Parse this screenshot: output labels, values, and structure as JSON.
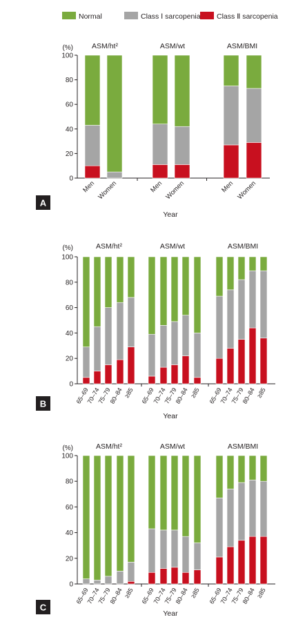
{
  "legend": {
    "items": [
      {
        "label": "Normal",
        "color": "#7aab3e"
      },
      {
        "label": "Class Ⅰ sarcopenia",
        "color": "#a5a5a5"
      },
      {
        "label": "Class Ⅱ sarcopenia",
        "color": "#c8101f"
      }
    ]
  },
  "colors": {
    "normal": "#7aab3e",
    "class1": "#a5a5a5",
    "class2": "#c8101f",
    "axis": "#231f20"
  },
  "chart_data": [
    {
      "type": "bar",
      "stacked": true,
      "panel_label": "A",
      "ylabel": "(%)",
      "xlabel": "Year",
      "ylim": [
        0,
        100
      ],
      "yticks": [
        0,
        20,
        40,
        60,
        80,
        100
      ],
      "groups": [
        {
          "title": "ASM/ht²",
          "categories": [
            "Men",
            "Women"
          ],
          "series": [
            {
              "name": "Class Ⅱ sarcopenia",
              "values": [
                10,
                0
              ]
            },
            {
              "name": "Class Ⅰ sarcopenia",
              "values": [
                33,
                5
              ]
            },
            {
              "name": "Normal",
              "values": [
                57,
                95
              ]
            }
          ]
        },
        {
          "title": "ASM/wt",
          "categories": [
            "Men",
            "Women"
          ],
          "series": [
            {
              "name": "Class Ⅱ sarcopenia",
              "values": [
                11,
                11
              ]
            },
            {
              "name": "Class Ⅰ sarcopenia",
              "values": [
                33,
                31
              ]
            },
            {
              "name": "Normal",
              "values": [
                56,
                58
              ]
            }
          ]
        },
        {
          "title": "ASM/BMI",
          "categories": [
            "Men",
            "Women"
          ],
          "series": [
            {
              "name": "Class Ⅱ sarcopenia",
              "values": [
                27,
                29
              ]
            },
            {
              "name": "Class Ⅰ sarcopenia",
              "values": [
                48,
                44
              ]
            },
            {
              "name": "Normal",
              "values": [
                25,
                27
              ]
            }
          ]
        }
      ]
    },
    {
      "type": "bar",
      "stacked": true,
      "panel_label": "B",
      "ylabel": "(%)",
      "xlabel": "Year",
      "ylim": [
        0,
        100
      ],
      "yticks": [
        0,
        20,
        40,
        60,
        80,
        100
      ],
      "groups": [
        {
          "title": "ASM/ht²",
          "categories": [
            "65–69",
            "70–74",
            "75–79",
            "80–84",
            "≥85"
          ],
          "series": [
            {
              "name": "Class Ⅱ sarcopenia",
              "values": [
                5,
                10,
                15,
                19,
                29
              ]
            },
            {
              "name": "Class Ⅰ sarcopenia",
              "values": [
                24,
                35,
                45,
                45,
                39
              ]
            },
            {
              "name": "Normal",
              "values": [
                71,
                55,
                40,
                36,
                32
              ]
            }
          ]
        },
        {
          "title": "ASM/wt",
          "categories": [
            "65–69",
            "70–74",
            "75–79",
            "80–84",
            "≥85"
          ],
          "series": [
            {
              "name": "Class Ⅱ sarcopenia",
              "values": [
                6,
                13,
                15,
                22,
                5
              ]
            },
            {
              "name": "Class Ⅰ sarcopenia",
              "values": [
                33,
                33,
                34,
                32,
                35
              ]
            },
            {
              "name": "Normal",
              "values": [
                61,
                54,
                51,
                46,
                60
              ]
            }
          ]
        },
        {
          "title": "ASM/BMI",
          "categories": [
            "65–69",
            "70–74",
            "75–79",
            "80–84",
            "≥85"
          ],
          "series": [
            {
              "name": "Class Ⅱ sarcopenia",
              "values": [
                20,
                28,
                35,
                44,
                36
              ]
            },
            {
              "name": "Class Ⅰ sarcopenia",
              "values": [
                49,
                46,
                47,
                45,
                53
              ]
            },
            {
              "name": "Normal",
              "values": [
                31,
                26,
                18,
                11,
                11
              ]
            }
          ]
        }
      ]
    },
    {
      "type": "bar",
      "stacked": true,
      "panel_label": "C",
      "ylabel": "(%)",
      "xlabel": "Year",
      "ylim": [
        0,
        100
      ],
      "yticks": [
        0,
        20,
        40,
        60,
        80,
        100
      ],
      "groups": [
        {
          "title": "ASM/ht²",
          "categories": [
            "65–69",
            "70–74",
            "75–79",
            "80–84",
            "≥85"
          ],
          "series": [
            {
              "name": "Class Ⅱ sarcopenia",
              "values": [
                0,
                0,
                0,
                0,
                2
              ]
            },
            {
              "name": "Class Ⅰ sarcopenia",
              "values": [
                4,
                3,
                6,
                10,
                15
              ]
            },
            {
              "name": "Normal",
              "values": [
                96,
                97,
                94,
                90,
                83
              ]
            }
          ]
        },
        {
          "title": "ASM/wt",
          "categories": [
            "65–69",
            "70–74",
            "75–79",
            "80–84",
            "≥85"
          ],
          "series": [
            {
              "name": "Class Ⅱ sarcopenia",
              "values": [
                9,
                12,
                13,
                9,
                11
              ]
            },
            {
              "name": "Class Ⅰ sarcopenia",
              "values": [
                34,
                30,
                29,
                28,
                21
              ]
            },
            {
              "name": "Normal",
              "values": [
                57,
                58,
                58,
                63,
                68
              ]
            }
          ]
        },
        {
          "title": "ASM/BMI",
          "categories": [
            "65–69",
            "70–74",
            "75–79",
            "80–84",
            "≥85"
          ],
          "series": [
            {
              "name": "Class Ⅱ sarcopenia",
              "values": [
                21,
                29,
                34,
                37,
                37
              ]
            },
            {
              "name": "Class Ⅰ sarcopenia",
              "values": [
                46,
                45,
                45,
                44,
                43
              ]
            },
            {
              "name": "Normal",
              "values": [
                33,
                26,
                21,
                19,
                20
              ]
            }
          ]
        }
      ]
    }
  ]
}
